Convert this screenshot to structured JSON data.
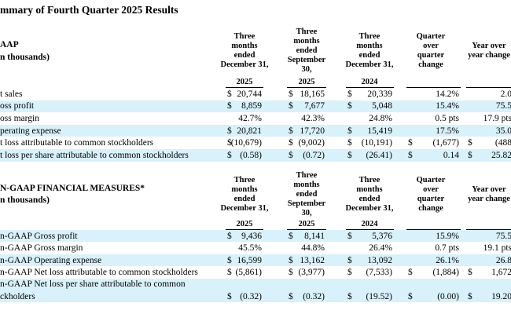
{
  "title": "mmary of Fourth Quarter 2025 Results",
  "sections": [
    {
      "title": "AAP",
      "subtitle": "n thousands)",
      "columns": [
        {
          "lines": [
            "Three",
            "months",
            "ended",
            "December 31,"
          ],
          "year": "2025"
        },
        {
          "lines": [
            "Three",
            "months",
            "ended",
            "September",
            "30,"
          ],
          "year": "2025"
        },
        {
          "lines": [
            "Three",
            "months",
            "ended",
            "December 31,"
          ],
          "year": "2024"
        },
        {
          "lines": [
            "Quarter",
            "over",
            "quarter",
            "change"
          ]
        },
        {
          "lines": [
            "Year over",
            "year change"
          ]
        }
      ],
      "rows": [
        {
          "label": [
            "t sales"
          ],
          "shade": false,
          "cells": [
            [
              "$",
              "20,744"
            ],
            [
              "$",
              "18,165"
            ],
            [
              "$",
              "20,339"
            ],
            [
              "14.2%"
            ],
            [
              "2.0"
            ]
          ]
        },
        {
          "label": [
            "oss profit"
          ],
          "shade": true,
          "cells": [
            [
              "$",
              "8,859"
            ],
            [
              "$",
              "7,677"
            ],
            [
              "$",
              "5,048"
            ],
            [
              "15.4%"
            ],
            [
              "75.5"
            ]
          ]
        },
        {
          "label": [
            "oss margin"
          ],
          "shade": false,
          "cells": [
            [
              "42.7%"
            ],
            [
              "42.3%"
            ],
            [
              "24.8%"
            ],
            [
              "0.5 pts"
            ],
            [
              "17.9 pts"
            ]
          ]
        },
        {
          "label": [
            "perating expense"
          ],
          "shade": true,
          "cells": [
            [
              "$",
              "20,821"
            ],
            [
              "$",
              "17,720"
            ],
            [
              "$",
              "15,419"
            ],
            [
              "17.5%"
            ],
            [
              "35.0"
            ]
          ]
        },
        {
          "label": [
            "t loss attributable to common stockholders"
          ],
          "shade": false,
          "cells": [
            [
              "$",
              "(10,679)"
            ],
            [
              "$",
              "(9,002)"
            ],
            [
              "$",
              "(10,191)"
            ],
            [
              "$",
              "(1,677)"
            ],
            [
              "$",
              "(488"
            ]
          ]
        },
        {
          "label": [
            "t loss per share attributable to common stockholders"
          ],
          "shade": true,
          "cells": [
            [
              "$",
              "(0.58)"
            ],
            [
              "$",
              "(0.72)"
            ],
            [
              "$",
              "(26.41)"
            ],
            [
              "$",
              "0.14"
            ],
            [
              "$",
              "25.82"
            ]
          ]
        }
      ]
    },
    {
      "title": "N-GAAP FINANCIAL MEASURES*",
      "subtitle": "n thousands)",
      "columns": [
        {
          "lines": [
            "Three",
            "months",
            "ended",
            "December 31,"
          ],
          "year": "2025"
        },
        {
          "lines": [
            "Three",
            "months",
            "ended",
            "September",
            "30,"
          ],
          "year": "2025"
        },
        {
          "lines": [
            "Three",
            "months",
            "ended",
            "December 31,"
          ],
          "year": "2024"
        },
        {
          "lines": [
            "Quarter",
            "over",
            "quarter",
            "change"
          ]
        },
        {
          "lines": [
            "Year over",
            "year change"
          ]
        }
      ],
      "rows": [
        {
          "label": [
            "n-GAAP Gross profit"
          ],
          "shade": true,
          "cells": [
            [
              "$",
              "9,436"
            ],
            [
              "$",
              "8,141"
            ],
            [
              "$",
              "5,376"
            ],
            [
              "15.9%"
            ],
            [
              "75.5"
            ]
          ]
        },
        {
          "label": [
            "n-GAAP Gross margin"
          ],
          "shade": false,
          "cells": [
            [
              "45.5%"
            ],
            [
              "44.8%"
            ],
            [
              "26.4%"
            ],
            [
              "0.7 pts"
            ],
            [
              "19.1 pts"
            ]
          ]
        },
        {
          "label": [
            "n-GAAP Operating expense"
          ],
          "shade": true,
          "cells": [
            [
              "$",
              "16,599"
            ],
            [
              "$",
              "13,162"
            ],
            [
              "$",
              "13,092"
            ],
            [
              "26.1%"
            ],
            [
              "26.8"
            ]
          ]
        },
        {
          "label": [
            "n-GAAP Net loss attributable to common stockholders"
          ],
          "shade": false,
          "cells": [
            [
              "$",
              "(5,861)"
            ],
            [
              "$",
              "(3,977)"
            ],
            [
              "$",
              "(7,533)"
            ],
            [
              "$",
              "(1,884)"
            ],
            [
              "$",
              "1,672"
            ]
          ]
        },
        {
          "label": [
            "n-GAAP Net loss per share attributable to common",
            "ckholders"
          ],
          "shade": true,
          "cells": [
            [
              "$",
              "(0.32)"
            ],
            [
              "$",
              "(0.32)"
            ],
            [
              "$",
              "(19.52)"
            ],
            [
              "$",
              "(0.00)"
            ],
            [
              "$",
              "19.20"
            ]
          ]
        }
      ]
    }
  ]
}
